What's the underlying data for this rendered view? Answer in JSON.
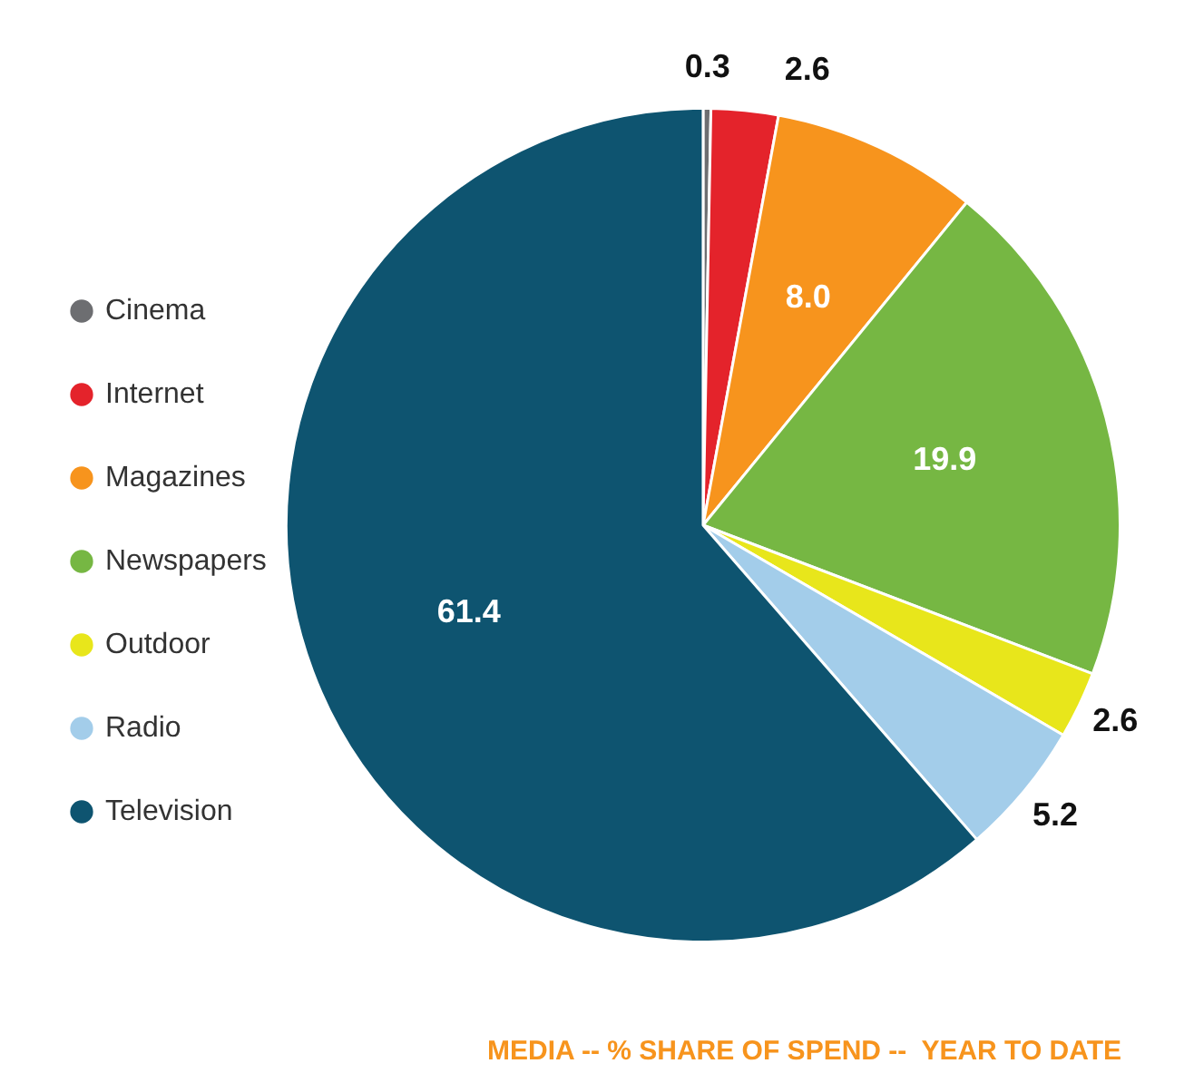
{
  "chart_data": {
    "type": "pie",
    "title": "MEDIA -- % SHARE OF SPEND --  YEAR TO DATE",
    "categories": [
      "Cinema",
      "Internet",
      "Magazines",
      "Newspapers",
      "Outdoor",
      "Radio",
      "Television"
    ],
    "values": [
      0.3,
      2.6,
      8.0,
      19.9,
      2.6,
      5.2,
      61.4
    ],
    "colors": [
      "#6d6e71",
      "#e4232b",
      "#f7941d",
      "#76b743",
      "#e8e61b",
      "#a3cdea",
      "#0e5470"
    ],
    "value_labels": [
      "0.3",
      "2.6",
      "8.0",
      "19.9",
      "2.6",
      "5.2",
      "61.4"
    ],
    "legend": "left"
  }
}
